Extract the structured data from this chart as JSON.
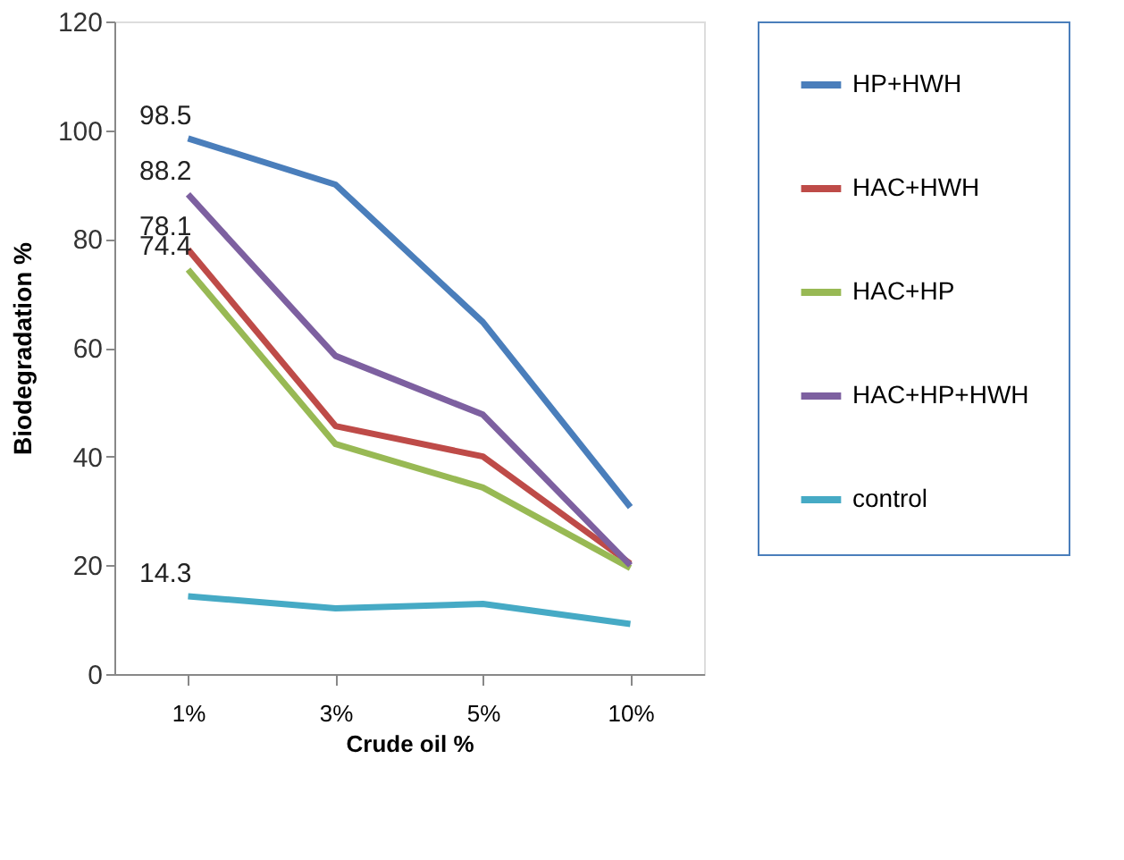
{
  "chart_data": {
    "type": "line",
    "xlabel": "Crude oil %",
    "ylabel": "Biodegradation %",
    "categories": [
      "1%",
      "3%",
      "5%",
      "10%"
    ],
    "series": [
      {
        "name": "HP+HWH",
        "color": "#4a7ebb",
        "values": [
          98.5,
          90,
          64.7,
          30.7
        ],
        "value_labels": [
          "98.5",
          null,
          null,
          null
        ]
      },
      {
        "name": "HAC+HWH",
        "color": "#be4b48",
        "values": [
          78.1,
          45.6,
          40,
          20.3
        ],
        "value_labels": [
          "78.1",
          null,
          null,
          null
        ]
      },
      {
        "name": "HAC+HP",
        "color": "#98b954",
        "values": [
          74.4,
          42.3,
          34.3,
          19.5
        ],
        "value_labels": [
          "74.4",
          null,
          null,
          null
        ]
      },
      {
        "name": "HAC+HP+HWH",
        "color": "#7d60a0",
        "values": [
          88.2,
          58.5,
          47.7,
          20
        ],
        "value_labels": [
          "88.2",
          null,
          null,
          null
        ]
      },
      {
        "name": "control",
        "color": "#46aac5",
        "values": [
          14.3,
          12.1,
          12.9,
          9.2
        ],
        "value_labels": [
          "14.3",
          null,
          null,
          null
        ]
      }
    ],
    "ylim": [
      0,
      120
    ],
    "yticks": [
      0,
      20,
      40,
      60,
      80,
      100,
      120
    ],
    "grid": false,
    "legend": "right",
    "marker": "none",
    "line_style": "solid"
  }
}
